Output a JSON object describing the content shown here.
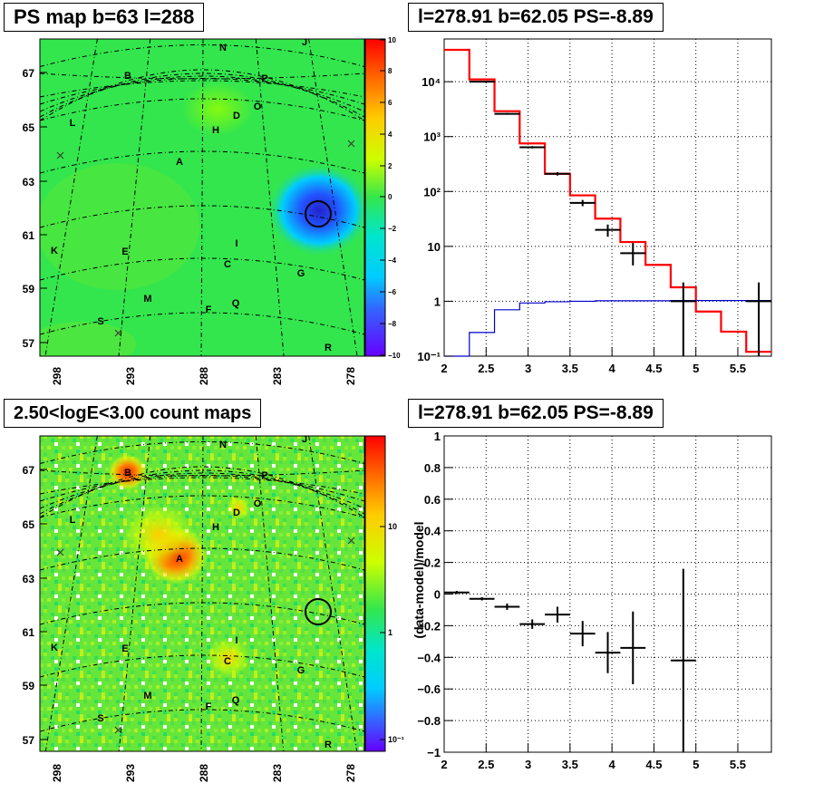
{
  "chart_data": [
    {
      "type": "heatmap",
      "title": "PS map b=63 l=288",
      "subtitle": "",
      "xlabel": "",
      "ylabel": "",
      "x_ticks": [
        "298",
        "293",
        "288",
        "283",
        "278"
      ],
      "y_ticks": [
        "57",
        "59",
        "61",
        "63",
        "65",
        "67"
      ],
      "colorbar_ticks": [
        "10",
        "8",
        "6",
        "4",
        "2",
        "0",
        "−2",
        "−4",
        "−6",
        "−8",
        "−10"
      ],
      "colorbar_range": [
        -10,
        10
      ],
      "source_labels": [
        "A",
        "B",
        "C",
        "D",
        "E",
        "F",
        "G",
        "H",
        "I",
        "J",
        "K",
        "L",
        "M",
        "N",
        "O",
        "P",
        "Q",
        "R",
        "S"
      ],
      "marked_position": {
        "l": 278.91,
        "b": 62.05
      },
      "background_color": "#33e64d",
      "min_color": "#2222cc"
    },
    {
      "type": "line",
      "title": "l=278.91 b=62.05 PS=-8.89",
      "xlabel": "",
      "ylabel": "",
      "y_scale": "log",
      "xlim": [
        2,
        5.9
      ],
      "ylim": [
        0.1,
        60000
      ],
      "x_ticks": [
        "2",
        "2.5",
        "3",
        "3.5",
        "4",
        "4.5",
        "5",
        "5.5"
      ],
      "y_ticks": [
        "10⁻¹",
        "1",
        "10",
        "10²",
        "10³",
        "10⁴"
      ],
      "grid": true,
      "bin_edges": [
        2.0,
        2.3,
        2.6,
        2.9,
        3.2,
        3.5,
        3.8,
        4.1,
        4.4,
        4.7,
        5.0,
        5.3,
        5.6,
        5.9
      ],
      "series": [
        {
          "style": "step",
          "color": "#ff0000",
          "values": [
            38000,
            11000,
            2900,
            750,
            210,
            85,
            32,
            12,
            4.6,
            1.8,
            0.65,
            0.28,
            0.12
          ]
        },
        {
          "style": "step",
          "color": "#0000cc",
          "values": [
            0.1,
            0.27,
            0.7,
            0.93,
            0.98,
            1.0,
            1.02,
            1.02,
            1.02,
            1.03,
            1.03,
            1.03,
            1.03
          ]
        },
        {
          "style": "points",
          "color": "#000000",
          "x": [
            2.45,
            2.75,
            3.05,
            3.35,
            3.65,
            3.95,
            4.25,
            4.85,
            5.75
          ],
          "y": [
            10000,
            2600,
            640,
            210,
            62,
            20,
            7.5,
            1.0,
            1.0
          ],
          "y_low": [
            9800,
            2500,
            610,
            195,
            54,
            15,
            4.5,
            0.1,
            0.1
          ],
          "y_high": [
            10200,
            2700,
            670,
            225,
            70,
            25,
            11.5,
            2.2,
            2.2
          ]
        }
      ]
    },
    {
      "type": "heatmap",
      "title": "2.50<logE<3.00 count maps",
      "subtitle": "",
      "xlabel": "",
      "ylabel": "",
      "color_scale": "log",
      "x_ticks": [
        "298",
        "293",
        "288",
        "283",
        "278"
      ],
      "y_ticks": [
        "57",
        "59",
        "61",
        "63",
        "65",
        "67"
      ],
      "colorbar_ticks": [
        "10",
        "1",
        "10⁻¹"
      ],
      "source_labels": [
        "A",
        "B",
        "C",
        "D",
        "E",
        "F",
        "G",
        "H",
        "I",
        "J",
        "K",
        "L",
        "M",
        "N",
        "O",
        "P",
        "Q",
        "R",
        "S"
      ],
      "marked_position": {
        "l": 278.91,
        "b": 62.05
      }
    },
    {
      "type": "scatter",
      "title": "l=278.91 b=62.05 PS=-8.89",
      "xlabel": "",
      "ylabel": "(data-model)/model",
      "xlim": [
        2,
        5.9
      ],
      "ylim": [
        -1,
        1
      ],
      "x_ticks": [
        "2",
        "2.5",
        "3",
        "3.5",
        "4",
        "4.5",
        "5",
        "5.5"
      ],
      "y_ticks": [
        "−1",
        "−0.8",
        "−0.6",
        "−0.4",
        "−0.2",
        "0",
        "0.2",
        "0.4",
        "0.6",
        "0.8",
        "1"
      ],
      "grid": true,
      "series": [
        {
          "color": "#000000",
          "x": [
            2.15,
            2.45,
            2.75,
            3.05,
            3.35,
            3.65,
            3.95,
            4.25,
            4.85
          ],
          "y": [
            0.01,
            -0.03,
            -0.08,
            -0.19,
            -0.13,
            -0.25,
            -0.37,
            -0.34,
            -0.42
          ],
          "y_err": [
            0.01,
            0.01,
            0.02,
            0.03,
            0.05,
            0.08,
            0.13,
            0.23,
            0.58
          ],
          "x_halfwidth": 0.15
        }
      ]
    }
  ]
}
